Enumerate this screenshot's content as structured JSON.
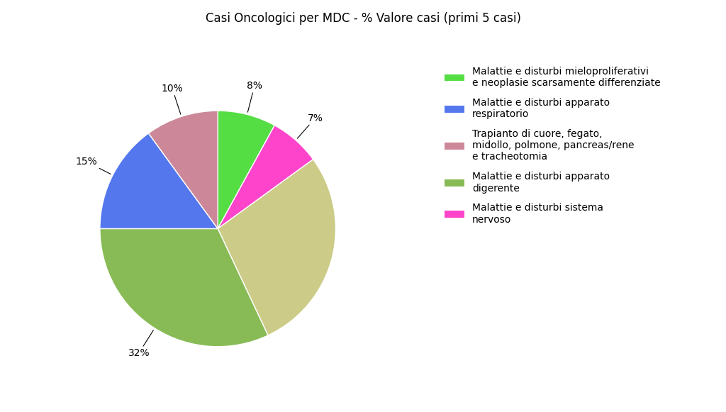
{
  "chart_data": {
    "type": "pie",
    "title": "Casi Oncologici per MDC - % Valore casi (primi 5 casi)",
    "values": [
      8,
      7,
      28,
      32,
      15,
      10
    ],
    "value_labels": [
      "8%",
      "7%",
      null,
      "32%",
      "15%",
      "10%"
    ],
    "colors": [
      "#55dd44",
      "#ff44cc",
      "#cccc88",
      "#88bb55",
      "#5577ee",
      "#cc8899"
    ],
    "data_labels": true,
    "legend": "upper left",
    "legend_entries": [
      {
        "name": "Malattie e disturbi mieloproliferativi\ne neoplasie scarsamente differenziate",
        "color": "#55dd44"
      },
      {
        "name": "Malattie e disturbi apparato\nrespiratorio",
        "color": "#5577ee"
      },
      {
        "name": "Trapianto di cuore, fegato,\nmidollo, polmone, pancreas/rene\ne tracheotomia",
        "color": "#cc8899"
      },
      {
        "name": "Malattie e disturbi apparato\ndigerente",
        "color": "#88bb55"
      },
      {
        "name": "Malattie e disturbi sistema\nnervoso",
        "color": "#ff44cc"
      }
    ]
  }
}
